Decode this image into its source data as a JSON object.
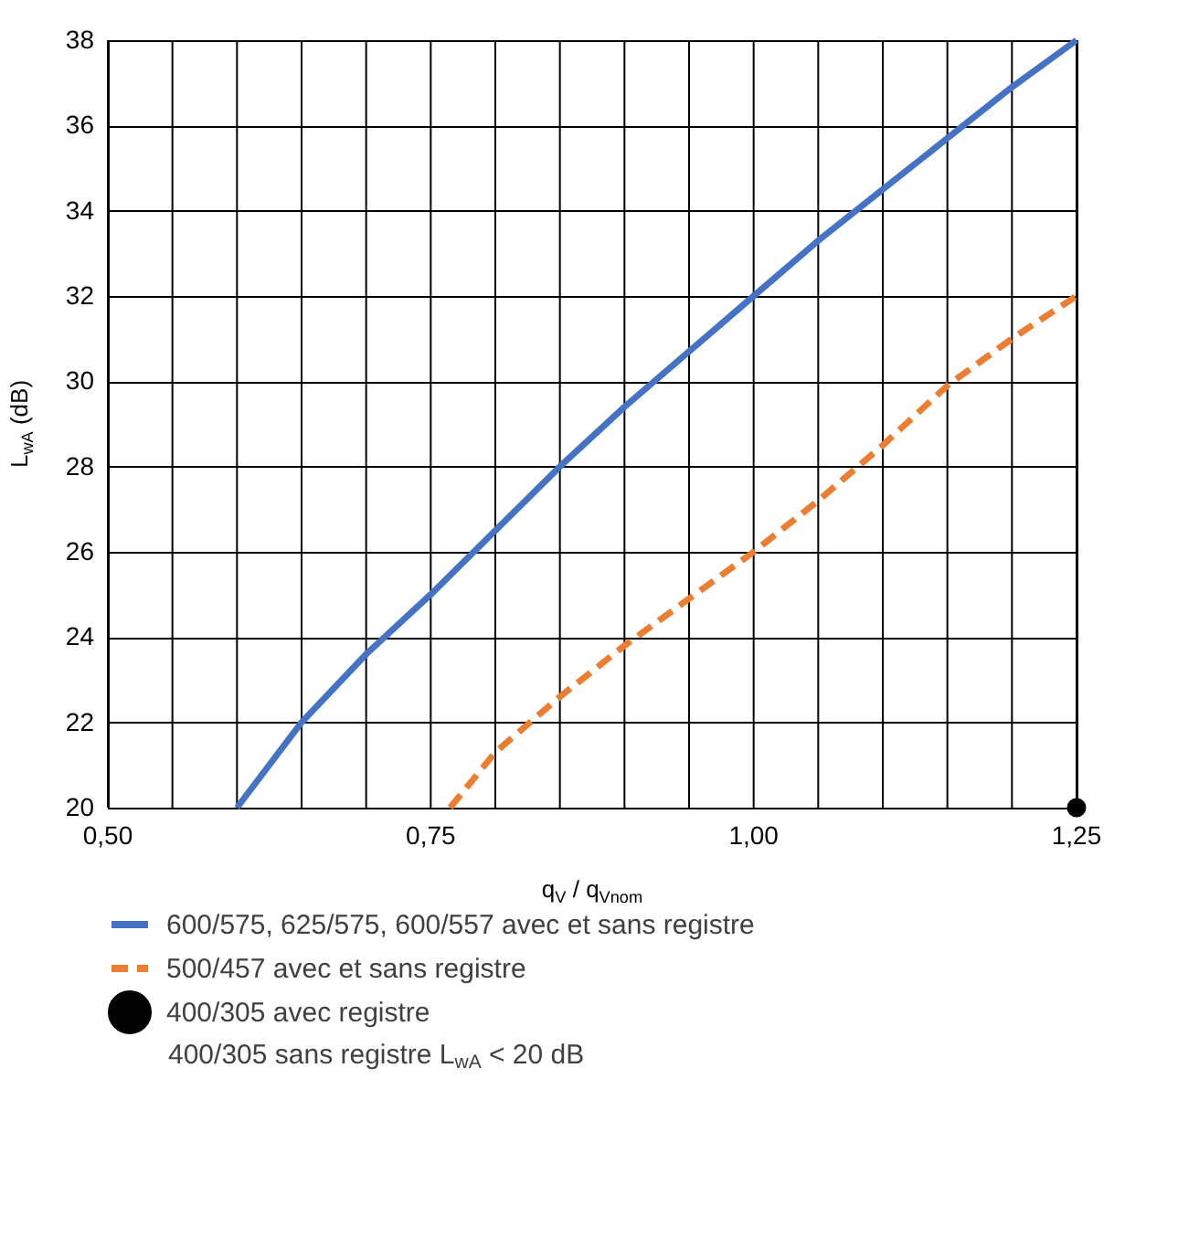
{
  "chart_data": {
    "type": "line",
    "xlabel": "q$_{V}$ / q$_{Vnom}$",
    "ylabel": "L$_{wA}$ (dB)",
    "xlim": [
      0.5,
      1.25
    ],
    "xticks": [
      {
        "value": 0.5,
        "label": "0,50"
      },
      {
        "value": 0.55,
        "label": null
      },
      {
        "value": 0.6,
        "label": null
      },
      {
        "value": 0.65,
        "label": null
      },
      {
        "value": 0.7,
        "label": null
      },
      {
        "value": 0.75,
        "label": "0,75"
      },
      {
        "value": 0.8,
        "label": null
      },
      {
        "value": 0.85,
        "label": null
      },
      {
        "value": 0.9,
        "label": null
      },
      {
        "value": 0.95,
        "label": null
      },
      {
        "value": 1.0,
        "label": "1,00"
      },
      {
        "value": 1.05,
        "label": null
      },
      {
        "value": 1.1,
        "label": null
      },
      {
        "value": 1.15,
        "label": null
      },
      {
        "value": 1.2,
        "label": null
      },
      {
        "value": 1.25,
        "label": "1,25"
      }
    ],
    "ylim": [
      20,
      38
    ],
    "yticks": [
      20,
      22,
      24,
      26,
      28,
      30,
      32,
      34,
      36,
      38
    ],
    "grid": true,
    "legend": "bottom",
    "series": [
      {
        "name": "600/575, 625/575, 600/557 avec et sans registre",
        "color": "#4472c4",
        "line_style": "solid",
        "marker": "none",
        "x": [
          0.6,
          0.65,
          0.7,
          0.75,
          0.8,
          0.85,
          0.9,
          0.95,
          1.0,
          1.05,
          1.1,
          1.15,
          1.2,
          1.25
        ],
        "values": [
          20,
          22,
          23.6,
          25,
          26.5,
          28,
          29.4,
          30.7,
          32,
          33.3,
          34.5,
          35.7,
          36.9,
          38
        ]
      },
      {
        "name": "500/457 avec et sans registre",
        "color": "#ed7d31",
        "line_style": "dashed",
        "marker": "none",
        "x": [
          0.765,
          0.8,
          0.85,
          0.9,
          0.95,
          1.0,
          1.05,
          1.1,
          1.15,
          1.2,
          1.25
        ],
        "values": [
          20,
          21.3,
          22.6,
          23.8,
          24.9,
          26,
          27.2,
          28.5,
          29.9,
          31,
          32
        ]
      },
      {
        "name": "400/305 avec registre",
        "type": "scatter",
        "color": "#000000",
        "marker": "circle",
        "x": [
          1.25
        ],
        "values": [
          20
        ]
      }
    ],
    "annotations": [
      "400/305 sans registre L$_{wA}$ < 20 dB"
    ]
  }
}
